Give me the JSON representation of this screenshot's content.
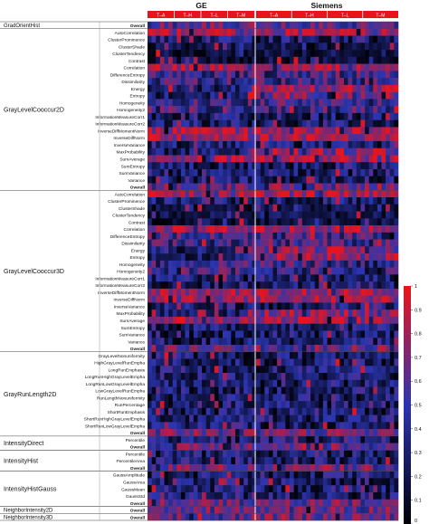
{
  "chart_data": {
    "type": "heatmap",
    "title": "",
    "xlabel": "",
    "ylabel": "",
    "vendors": [
      "GE",
      "Siemens"
    ],
    "vendor_groups": [
      {
        "vendor": "GE",
        "groups": [
          "T–A",
          "T–H",
          "T–L",
          "T–M"
        ]
      },
      {
        "vendor": "Siemens",
        "groups": [
          "T–A",
          "T–H",
          "T–L",
          "T–M"
        ]
      }
    ],
    "colorbar": {
      "min": 0,
      "max": 1,
      "ticks": [
        "1",
        "0.9",
        "0.8",
        "0.7",
        "0.6",
        "0.5",
        "0.4",
        "0.3",
        "0.2",
        "0.1",
        "0"
      ],
      "colors": {
        "low": "#000000",
        "mid": "#2b35b0",
        "high": "#e8141c"
      }
    },
    "groups": [
      {
        "name": "GradOrientHist",
        "features": [
          "Overall"
        ]
      },
      {
        "name": "GrayLevelCooccur2D",
        "features": [
          "AutoCorrelation",
          "ClusterProminence",
          "ClusterShade",
          "ClusterTendency",
          "Contrast",
          "Correlation",
          "DifferenceEntropy",
          "Dissimilarity",
          "Energy",
          "Entropy",
          "Homogeneity",
          "Homogeneity2",
          "InformationMeasureCorr1",
          "InformationMeasureCorr2",
          "InverseDiffMomentNorm",
          "InverseDiffNorm",
          "InverseVariance",
          "MaxProbability",
          "SumAverage",
          "SumEntropy",
          "SumVariance",
          "Variance",
          "Overall"
        ]
      },
      {
        "name": "GrayLevelCooccur3D",
        "features": [
          "AutoCorrelation",
          "ClusterProminence",
          "ClusterShade",
          "ClusterTendency",
          "Contrast",
          "Correlation",
          "DifferenceEntropy",
          "Dissimilarity",
          "Energy",
          "Entropy",
          "Homogeneity",
          "Homogeneity2",
          "InformationMeasureCorr1",
          "InformationMeasureCorr2",
          "InverseDiffMomentNorm",
          "InverseDiffNorm",
          "InverseVariance",
          "MaxProbability",
          "SumAverage",
          "SumEntropy",
          "SumVariance",
          "Variance",
          "Overall"
        ]
      },
      {
        "name": "GrayRunLength2D",
        "features": [
          "GrayLevelNonuniformity",
          "HighGrayLevelRunEmpha",
          "LongRunEmphasis",
          "LongRunHighGrayLevelEmpha",
          "LongRunLowGrayLevelEmpha",
          "LowGrayLevelRunEmpha",
          "RunLengthNonuniformity",
          "RunPercentage",
          "ShortRunEmphasis",
          "ShortRunHighGrayLevelEmpha",
          "ShortRunLowGrayLevelEmpha",
          "Overall"
        ]
      },
      {
        "name": "IntensityDirect",
        "features": [
          "Percentile",
          "Overall"
        ]
      },
      {
        "name": "IntensityHist",
        "features": [
          "Percentile",
          "PercentileArea",
          "Overall"
        ]
      },
      {
        "name": "IntensityHistGauss",
        "features": [
          "GaussAmplitude",
          "GaussArea",
          "GaussMean",
          "GaussStd",
          "Overall"
        ]
      },
      {
        "name": "NeighborIntensity2D",
        "features": [
          "Overall"
        ]
      },
      {
        "name": "NeighborIntensity3D",
        "features": [
          "Overall"
        ]
      }
    ],
    "row_patterns": {
      "Correlation": "high",
      "Energy": "high-siemens",
      "Entropy": "high-siemens",
      "InverseDiffMomentNorm": "high",
      "InverseDiffNorm": "high",
      "SumAverage": "high",
      "AutoCorrelation": "high",
      "MaxProbability": "high-siemens",
      "Dissimilarity": "mid",
      "DifferenceEntropy": "mid",
      "Homogeneity": "mid",
      "Homogeneity2": "mid",
      "ClusterTendency": "low",
      "ClusterShade": "low",
      "Contrast": "low",
      "Overall": "mid-high"
    }
  }
}
